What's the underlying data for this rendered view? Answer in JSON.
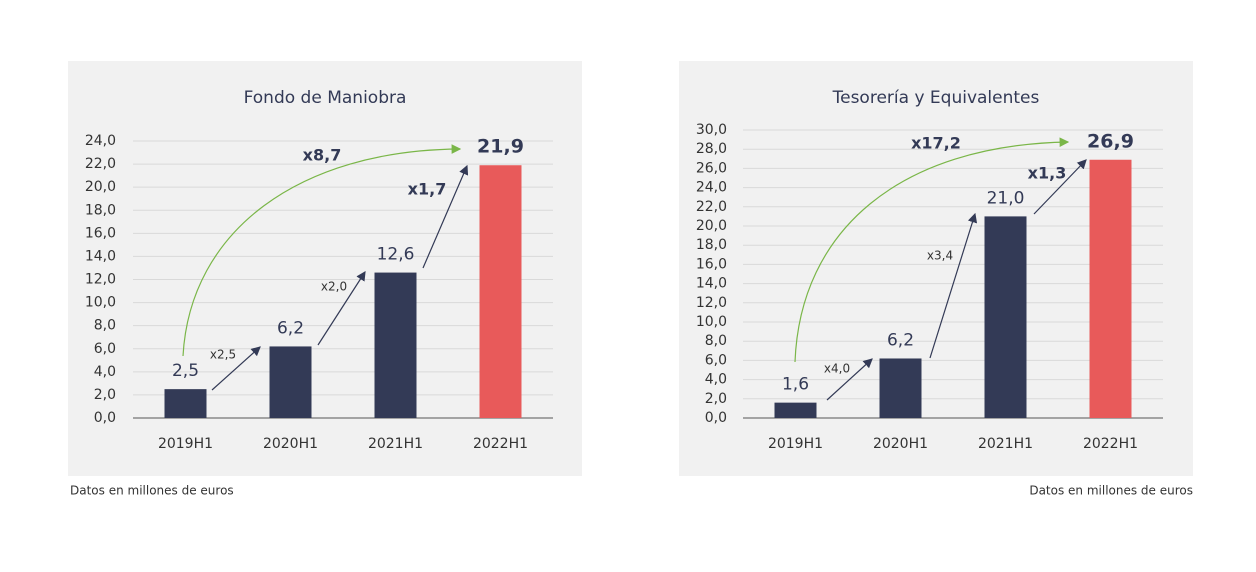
{
  "chart_data": [
    {
      "type": "bar",
      "title": "Fondo de Maniobra",
      "categories": [
        "2019H1",
        "2020H1",
        "2021H1",
        "2022H1"
      ],
      "values": [
        2.5,
        6.2,
        12.6,
        21.9
      ],
      "value_labels": [
        "2,5",
        "6,2",
        "12,6",
        "21,9"
      ],
      "colors": [
        "#333a56",
        "#333a56",
        "#333a56",
        "#e85a5a"
      ],
      "ylim": [
        0,
        24
      ],
      "yticks": [
        {
          "value": 0,
          "label": "0,0"
        },
        {
          "value": 2,
          "label": "2,0"
        },
        {
          "value": 4,
          "label": "4,0"
        },
        {
          "value": 6,
          "label": "6,0"
        },
        {
          "value": 8,
          "label": "8,0"
        },
        {
          "value": 10,
          "label": "10,0"
        },
        {
          "value": 12,
          "label": "12,0"
        },
        {
          "value": 14,
          "label": "14,0"
        },
        {
          "value": 16,
          "label": "16,0"
        },
        {
          "value": 18,
          "label": "18,0"
        },
        {
          "value": 20,
          "label": "20,0"
        },
        {
          "value": 22,
          "label": "22,0"
        },
        {
          "value": 24,
          "label": "24,0"
        }
      ],
      "grid": true,
      "annotations": [
        "x2,5",
        "x2,0",
        "x1,7",
        "x8,7"
      ],
      "note": "Datos en millones de euros"
    },
    {
      "type": "bar",
      "title": "Tesorería y Equivalentes",
      "categories": [
        "2019H1",
        "2020H1",
        "2021H1",
        "2022H1"
      ],
      "values": [
        1.6,
        6.2,
        21.0,
        26.9
      ],
      "value_labels": [
        "1,6",
        "6,2",
        "21,0",
        "26,9"
      ],
      "colors": [
        "#333a56",
        "#333a56",
        "#333a56",
        "#e85a5a"
      ],
      "ylim": [
        0,
        30
      ],
      "yticks": [
        {
          "value": 0,
          "label": "0,0"
        },
        {
          "value": 2,
          "label": "2,0"
        },
        {
          "value": 4,
          "label": "4,0"
        },
        {
          "value": 6,
          "label": "6,0"
        },
        {
          "value": 8,
          "label": "8,0"
        },
        {
          "value": 10,
          "label": "10,0"
        },
        {
          "value": 12,
          "label": "12,0"
        },
        {
          "value": 14,
          "label": "14,0"
        },
        {
          "value": 16,
          "label": "16,0"
        },
        {
          "value": 18,
          "label": "18,0"
        },
        {
          "value": 20,
          "label": "20,0"
        },
        {
          "value": 22,
          "label": "22,0"
        },
        {
          "value": 24,
          "label": "24,0"
        },
        {
          "value": 26,
          "label": "26,0"
        },
        {
          "value": 28,
          "label": "28,0"
        },
        {
          "value": 30,
          "label": "30,0"
        }
      ],
      "grid": true,
      "annotations": [
        "x4,0",
        "x3,4",
        "x1,3",
        "x17,2"
      ],
      "note": "Datos en millones de euros"
    }
  ]
}
